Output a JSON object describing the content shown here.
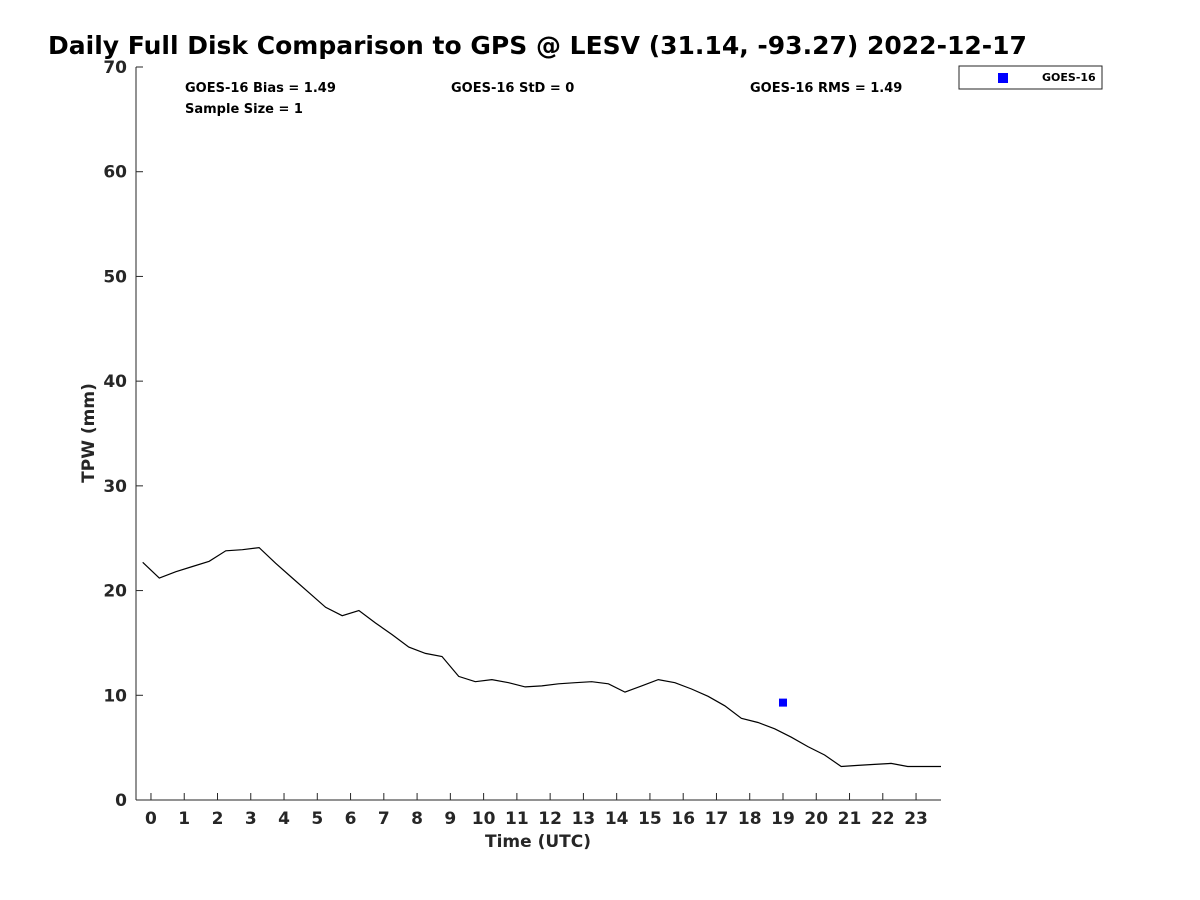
{
  "chart_data": {
    "type": "line",
    "title": "Daily Full Disk Comparison to GPS @ LESV (31.14, -93.27) 2022-12-17",
    "xlabel": "Time (UTC)",
    "ylabel": "TPW (mm)",
    "xlim": [
      -0.45,
      23.75
    ],
    "ylim": [
      0,
      70
    ],
    "x_ticks": [
      0,
      1,
      2,
      3,
      4,
      5,
      6,
      7,
      8,
      9,
      10,
      11,
      12,
      13,
      14,
      15,
      16,
      17,
      18,
      19,
      20,
      21,
      22,
      23
    ],
    "y_ticks": [
      0,
      10,
      20,
      30,
      40,
      50,
      60,
      70
    ],
    "grid": false,
    "legend_position": "top-right",
    "stats": {
      "bias": "GOES-16 Bias = 1.49",
      "std": "GOES-16 StD = 0",
      "rms": "GOES-16 RMS = 1.49",
      "sample": "Sample Size = 1"
    },
    "series": [
      {
        "kind": "line",
        "color": "#000000",
        "x": [
          -0.25,
          0.25,
          0.75,
          1.25,
          1.75,
          2.25,
          2.75,
          3.25,
          3.75,
          4.25,
          4.75,
          5.25,
          5.75,
          6.25,
          6.75,
          7.25,
          7.75,
          8.25,
          8.75,
          9.25,
          9.75,
          10.25,
          10.75,
          11.25,
          11.75,
          12.25,
          12.75,
          13.25,
          13.75,
          14.25,
          14.75,
          15.25,
          15.75,
          16.25,
          16.75,
          17.25,
          17.75,
          18.25,
          18.75,
          19.25,
          19.75,
          20.25,
          20.75,
          21.25,
          21.75,
          22.25,
          22.75,
          23.25,
          23.75
        ],
        "y": [
          22.7,
          21.2,
          21.8,
          22.3,
          22.8,
          23.8,
          23.9,
          24.1,
          22.6,
          21.2,
          19.8,
          18.4,
          17.6,
          18.1,
          16.9,
          15.8,
          14.6,
          14.0,
          13.7,
          11.8,
          11.3,
          11.5,
          11.2,
          10.8,
          10.9,
          11.1,
          11.2,
          11.3,
          11.1,
          10.3,
          10.9,
          11.5,
          11.2,
          10.6,
          9.9,
          9.0,
          7.8,
          7.4,
          6.8,
          6.0,
          5.1,
          4.3,
          3.2,
          3.3,
          3.4,
          3.5,
          3.2,
          3.2,
          3.2
        ]
      },
      {
        "name": "GOES-16",
        "kind": "scatter",
        "marker": "square",
        "color": "#0000ff",
        "x": [
          19.0
        ],
        "y": [
          9.3
        ]
      }
    ]
  }
}
